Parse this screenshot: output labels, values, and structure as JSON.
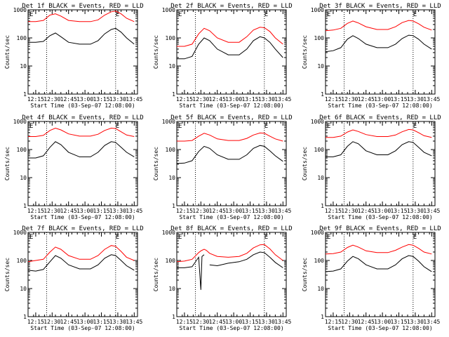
{
  "figure": {
    "ylabel": "Counts/sec",
    "xlabel": "Start Time (03-Sep-07 12:08:00)",
    "marker": "E",
    "colors": {
      "events": "#000000",
      "lld": "#ff0000",
      "axes": "#000000",
      "background": "#ffffff"
    }
  },
  "chart_data": [
    {
      "type": "line",
      "title": "Det 1f BLACK = Events, RED = LLD",
      "xlabel": "Start Time (03-Sep-07 12:08:00)",
      "ylabel": "Counts/sec",
      "y_scale": "log",
      "ylim": [
        1,
        1000
      ],
      "xlim": [
        "12:08",
        "13:48"
      ],
      "x_ticks": [
        "12:15",
        "12:30",
        "12:45",
        "13:00",
        "13:15",
        "13:30",
        "13:45"
      ],
      "y_ticks": [
        "1",
        "10",
        "100",
        "1000"
      ],
      "vlines": [
        "12:25",
        "13:28"
      ],
      "x": [
        "12:08",
        "12:15",
        "12:22",
        "12:28",
        "12:33",
        "12:38",
        "12:45",
        "12:55",
        "13:05",
        "13:12",
        "13:18",
        "13:24",
        "13:28",
        "13:33",
        "13:38",
        "13:45"
      ],
      "series": [
        {
          "name": "Events",
          "color": "#000000",
          "values": [
            70,
            70,
            75,
            120,
            150,
            110,
            70,
            60,
            60,
            80,
            140,
            200,
            220,
            160,
            100,
            60
          ]
        },
        {
          "name": "LLD",
          "color": "#ff0000",
          "values": [
            380,
            380,
            420,
            650,
            720,
            600,
            420,
            380,
            380,
            440,
            650,
            850,
            900,
            720,
            500,
            380
          ]
        }
      ]
    },
    {
      "type": "line",
      "title": "Det 2f BLACK = Events, RED = LLD",
      "xlabel": "Start Time (03-Sep-07 12:08:00)",
      "ylabel": "Counts/sec",
      "y_scale": "log",
      "ylim": [
        1,
        1000
      ],
      "xlim": [
        "12:08",
        "13:48"
      ],
      "x_ticks": [
        "12:15",
        "12:30",
        "12:45",
        "13:00",
        "13:15",
        "13:30",
        "13:45"
      ],
      "y_ticks": [
        "1",
        "10",
        "100",
        "1000"
      ],
      "vlines": [
        "12:25",
        "13:28"
      ],
      "x": [
        "12:08",
        "12:15",
        "12:22",
        "12:28",
        "12:33",
        "12:38",
        "12:45",
        "12:55",
        "13:05",
        "13:12",
        "13:18",
        "13:24",
        "13:28",
        "13:33",
        "13:38",
        "13:45"
      ],
      "series": [
        {
          "name": "Events",
          "color": "#000000",
          "values": [
            18,
            18,
            22,
            60,
            100,
            80,
            40,
            25,
            25,
            40,
            80,
            110,
            100,
            70,
            40,
            20
          ]
        },
        {
          "name": "LLD",
          "color": "#ff0000",
          "values": [
            50,
            50,
            60,
            140,
            220,
            180,
            100,
            70,
            70,
            110,
            190,
            240,
            230,
            170,
            100,
            60
          ]
        }
      ]
    },
    {
      "type": "line",
      "title": "Det 3f BLACK = Events, RED = LLD",
      "xlabel": "Start Time (03-Sep-07 12:08:00)",
      "ylabel": "Counts/sec",
      "y_scale": "log",
      "ylim": [
        1,
        1000
      ],
      "xlim": [
        "12:08",
        "13:48"
      ],
      "x_ticks": [
        "12:15",
        "12:30",
        "12:45",
        "13:00",
        "13:15",
        "13:30",
        "13:45"
      ],
      "y_ticks": [
        "1",
        "10",
        "100",
        "1000"
      ],
      "vlines": [
        "12:25",
        "13:28"
      ],
      "x": [
        "12:08",
        "12:15",
        "12:22",
        "12:28",
        "12:33",
        "12:38",
        "12:45",
        "12:55",
        "13:05",
        "13:12",
        "13:18",
        "13:24",
        "13:28",
        "13:33",
        "13:38",
        "13:45"
      ],
      "series": [
        {
          "name": "Events",
          "color": "#000000",
          "values": [
            32,
            35,
            45,
            90,
            120,
            95,
            60,
            45,
            45,
            60,
            95,
            125,
            120,
            90,
            60,
            40
          ]
        },
        {
          "name": "LLD",
          "color": "#ff0000",
          "values": [
            180,
            190,
            220,
            330,
            400,
            340,
            250,
            200,
            200,
            250,
            350,
            420,
            400,
            320,
            240,
            190
          ]
        }
      ]
    },
    {
      "type": "line",
      "title": "Det 4f BLACK = Events, RED = LLD",
      "xlabel": "Start Time (03-Sep-07 12:08:00)",
      "ylabel": "Counts/sec",
      "y_scale": "log",
      "ylim": [
        1,
        1000
      ],
      "xlim": [
        "12:08",
        "13:48"
      ],
      "x_ticks": [
        "12:15",
        "12:30",
        "12:45",
        "13:00",
        "13:15",
        "13:30",
        "13:45"
      ],
      "y_ticks": [
        "1",
        "10",
        "100",
        "1000"
      ],
      "vlines": [
        "12:25",
        "13:28"
      ],
      "x": [
        "12:08",
        "12:15",
        "12:22",
        "12:28",
        "12:33",
        "12:38",
        "12:45",
        "12:55",
        "13:05",
        "13:12",
        "13:18",
        "13:24",
        "13:28",
        "13:33",
        "13:38",
        "13:45"
      ],
      "series": [
        {
          "name": "Events",
          "color": "#000000",
          "values": [
            50,
            50,
            60,
            120,
            190,
            150,
            80,
            55,
            55,
            80,
            140,
            190,
            180,
            120,
            80,
            55
          ]
        },
        {
          "name": "LLD",
          "color": "#ff0000",
          "values": [
            290,
            290,
            320,
            480,
            580,
            500,
            360,
            300,
            300,
            350,
            480,
            580,
            560,
            430,
            330,
            290
          ]
        }
      ]
    },
    {
      "type": "line",
      "title": "Det 5f BLACK = Events, RED = LLD",
      "xlabel": "Start Time (03-Sep-07 12:08:00)",
      "ylabel": "Counts/sec",
      "y_scale": "log",
      "ylim": [
        1,
        1000
      ],
      "xlim": [
        "12:08",
        "13:48"
      ],
      "x_ticks": [
        "12:15",
        "12:30",
        "12:45",
        "13:00",
        "13:15",
        "13:30",
        "13:45"
      ],
      "y_ticks": [
        "1",
        "10",
        "100",
        "1000"
      ],
      "vlines": [
        "12:25",
        "13:28"
      ],
      "x": [
        "12:08",
        "12:15",
        "12:22",
        "12:28",
        "12:33",
        "12:38",
        "12:45",
        "12:55",
        "13:05",
        "13:12",
        "13:18",
        "13:24",
        "13:28",
        "13:33",
        "13:38",
        "13:45"
      ],
      "series": [
        {
          "name": "Events",
          "color": "#000000",
          "values": [
            32,
            33,
            40,
            85,
            130,
            110,
            65,
            45,
            45,
            65,
            110,
            140,
            130,
            90,
            60,
            38
          ]
        },
        {
          "name": "LLD",
          "color": "#ff0000",
          "values": [
            200,
            200,
            210,
            300,
            380,
            330,
            240,
            210,
            210,
            250,
            330,
            390,
            380,
            300,
            240,
            200
          ]
        }
      ]
    },
    {
      "type": "line",
      "title": "Det 6f BLACK = Events, RED = LLD",
      "xlabel": "Start Time (03-Sep-07 12:08:00)",
      "ylabel": "Counts/sec",
      "y_scale": "log",
      "ylim": [
        1,
        1000
      ],
      "xlim": [
        "12:08",
        "13:48"
      ],
      "x_ticks": [
        "12:15",
        "12:30",
        "12:45",
        "13:00",
        "13:15",
        "13:30",
        "13:45"
      ],
      "y_ticks": [
        "1",
        "10",
        "100",
        "1000"
      ],
      "vlines": [
        "12:25",
        "13:28"
      ],
      "x": [
        "12:08",
        "12:15",
        "12:22",
        "12:28",
        "12:33",
        "12:38",
        "12:45",
        "12:55",
        "13:05",
        "13:12",
        "13:18",
        "13:24",
        "13:28",
        "13:33",
        "13:38",
        "13:45"
      ],
      "series": [
        {
          "name": "Events",
          "color": "#000000",
          "values": [
            55,
            55,
            65,
            130,
            190,
            160,
            90,
            65,
            65,
            90,
            150,
            190,
            180,
            120,
            80,
            60
          ]
        },
        {
          "name": "LLD",
          "color": "#ff0000",
          "values": [
            270,
            270,
            300,
            420,
            500,
            440,
            340,
            290,
            290,
            330,
            430,
            520,
            500,
            400,
            310,
            270
          ]
        }
      ]
    },
    {
      "type": "line",
      "title": "Det 7f BLACK = Events, RED = LLD",
      "xlabel": "Start Time (03-Sep-07 12:08:00)",
      "ylabel": "Counts/sec",
      "y_scale": "log",
      "ylim": [
        1,
        1000
      ],
      "xlim": [
        "12:08",
        "13:48"
      ],
      "x_ticks": [
        "12:15",
        "12:30",
        "12:45",
        "13:00",
        "13:15",
        "13:30",
        "13:45"
      ],
      "y_ticks": [
        "1",
        "10",
        "100",
        "1000"
      ],
      "vlines": [
        "12:25",
        "13:28"
      ],
      "x": [
        "12:08",
        "12:15",
        "12:22",
        "12:28",
        "12:33",
        "12:38",
        "12:45",
        "12:55",
        "13:05",
        "13:12",
        "13:18",
        "13:24",
        "13:28",
        "13:33",
        "13:38",
        "13:45"
      ],
      "series": [
        {
          "name": "Events",
          "color": "#000000",
          "values": [
            45,
            42,
            48,
            90,
            150,
            120,
            70,
            50,
            50,
            70,
            120,
            160,
            150,
            100,
            65,
            45
          ]
        },
        {
          "name": "LLD",
          "color": "#ff0000",
          "values": [
            90,
            100,
            110,
            200,
            300,
            250,
            150,
            110,
            110,
            150,
            250,
            340,
            320,
            210,
            130,
            100
          ]
        }
      ]
    },
    {
      "type": "line",
      "title": "Det 8f BLACK = Events, RED = LLD",
      "xlabel": "Start Time (03-Sep-07 12:08:00)",
      "ylabel": "Counts/sec",
      "y_scale": "log",
      "ylim": [
        1,
        1000
      ],
      "xlim": [
        "12:08",
        "13:48"
      ],
      "x_ticks": [
        "12:15",
        "12:30",
        "12:45",
        "13:00",
        "13:15",
        "13:30",
        "13:45"
      ],
      "y_ticks": [
        "1",
        "10",
        "100",
        "1000"
      ],
      "vlines": [
        "12:25",
        "13:28"
      ],
      "x": [
        "12:08",
        "12:15",
        "12:22",
        "12:28",
        "12:30",
        "12:31",
        "12:33",
        "12:35",
        "12:38",
        "12:45",
        "12:55",
        "13:05",
        "13:12",
        "13:18",
        "13:24",
        "13:28",
        "13:33",
        "13:38",
        "13:45"
      ],
      "series": [
        {
          "name": "Events",
          "color": "#000000",
          "values": [
            55,
            55,
            60,
            130,
            9,
            140,
            160,
            null,
            70,
            65,
            80,
            90,
            110,
            160,
            200,
            190,
            130,
            85,
            55
          ]
        },
        {
          "name": "LLD",
          "color": "#ff0000",
          "values": [
            90,
            95,
            110,
            190,
            220,
            230,
            250,
            230,
            180,
            140,
            130,
            140,
            180,
            280,
            360,
            370,
            260,
            160,
            100
          ]
        }
      ]
    },
    {
      "type": "line",
      "title": "Det 9f BLACK = Events, RED = LLD",
      "xlabel": "Start Time (03-Sep-07 12:08:00)",
      "ylabel": "Counts/sec",
      "y_scale": "log",
      "ylim": [
        1,
        1000
      ],
      "xlim": [
        "12:08",
        "13:48"
      ],
      "x_ticks": [
        "12:15",
        "12:30",
        "12:45",
        "13:00",
        "13:15",
        "13:30",
        "13:45"
      ],
      "y_ticks": [
        "1",
        "10",
        "100",
        "1000"
      ],
      "vlines": [
        "12:25",
        "13:28"
      ],
      "x": [
        "12:08",
        "12:15",
        "12:22",
        "12:28",
        "12:33",
        "12:38",
        "12:45",
        "12:55",
        "13:05",
        "13:12",
        "13:18",
        "13:24",
        "13:28",
        "13:33",
        "13:38",
        "13:45"
      ],
      "series": [
        {
          "name": "Events",
          "color": "#000000",
          "values": [
            40,
            42,
            50,
            95,
            140,
            115,
            70,
            50,
            50,
            70,
            115,
            150,
            140,
            95,
            60,
            40
          ]
        },
        {
          "name": "LLD",
          "color": "#ff0000",
          "values": [
            170,
            175,
            200,
            290,
            350,
            300,
            220,
            190,
            190,
            230,
            300,
            370,
            350,
            270,
            200,
            170
          ]
        }
      ]
    }
  ]
}
